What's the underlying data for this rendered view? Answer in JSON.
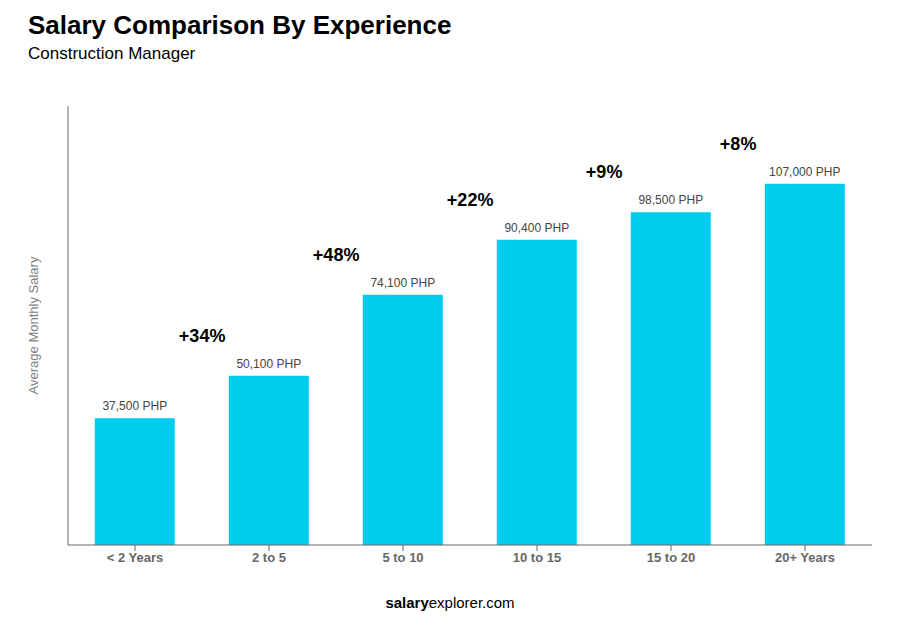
{
  "chart_data": {
    "type": "bar",
    "title": "Salary Comparison By Experience",
    "subtitle": "Construction Manager",
    "ylabel": "Average Monthly Salary",
    "footer": [
      "salary",
      "explorer.com"
    ],
    "categories": [
      "< 2 Years",
      "2 to 5",
      "5 to 10",
      "10 to 15",
      "15 to 20",
      "20+ Years"
    ],
    "values": [
      37500,
      50100,
      74100,
      90400,
      98500,
      107000
    ],
    "value_labels": [
      "37,500 PHP",
      "50,100 PHP",
      "74,100 PHP",
      "90,400 PHP",
      "98,500 PHP",
      "107,000 PHP"
    ],
    "annotations": [
      "+34%",
      "+48%",
      "+22%",
      "+9%",
      "+8%"
    ],
    "color": "#00ccee",
    "ylim": [
      0,
      130000
    ],
    "data_labels": true,
    "tick_labels": "x"
  }
}
